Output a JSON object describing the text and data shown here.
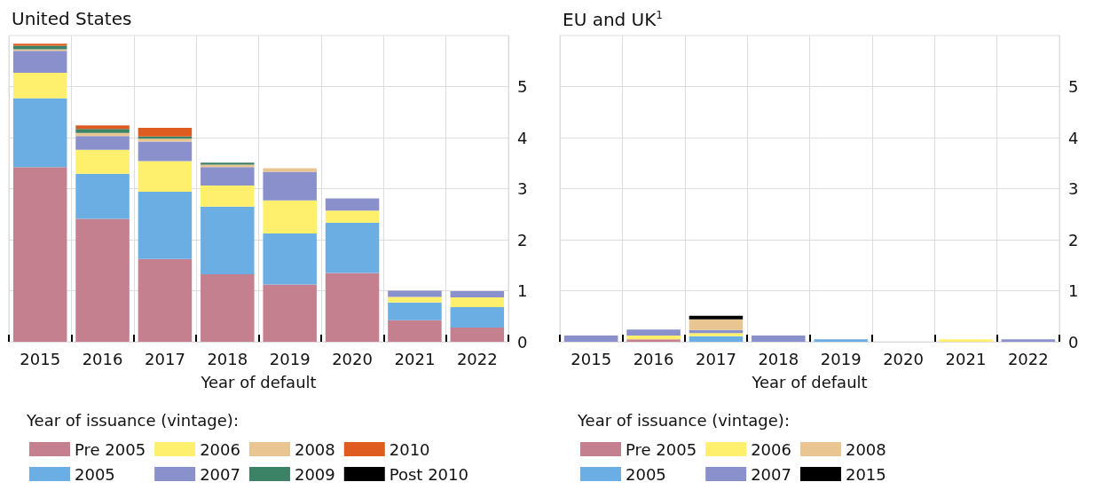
{
  "chart_data": [
    {
      "type": "bar",
      "stacked": true,
      "title": "United States",
      "xlabel": "Year of default",
      "legend_title": "Year of issuance (vintage):",
      "legend": "bottom",
      "grid": true,
      "categories": [
        "2015",
        "2016",
        "2017",
        "2018",
        "2019",
        "2020",
        "2021",
        "2022"
      ],
      "ylim": [
        0,
        6
      ],
      "yticks": [
        0,
        1,
        2,
        3,
        4,
        5
      ],
      "series": [
        {
          "name": "Pre 2005",
          "color": "#c4808f",
          "values": [
            3.42,
            2.41,
            1.62,
            1.32,
            1.12,
            1.35,
            0.42,
            0.28
          ]
        },
        {
          "name": "2005",
          "color": "#6aaee3",
          "values": [
            1.35,
            0.88,
            1.32,
            1.33,
            1.0,
            0.98,
            0.35,
            0.4
          ]
        },
        {
          "name": "2006",
          "color": "#fef06c",
          "values": [
            0.5,
            0.47,
            0.6,
            0.41,
            0.65,
            0.24,
            0.11,
            0.19
          ]
        },
        {
          "name": "2007",
          "color": "#8a90cc",
          "values": [
            0.43,
            0.27,
            0.38,
            0.36,
            0.56,
            0.24,
            0.12,
            0.12
          ]
        },
        {
          "name": "2008",
          "color": "#e8c591",
          "values": [
            0.03,
            0.06,
            0.06,
            0.05,
            0.07,
            0,
            0,
            0
          ]
        },
        {
          "name": "2009",
          "color": "#3b8266",
          "values": [
            0.07,
            0.08,
            0.04,
            0.04,
            0,
            0,
            0,
            0
          ]
        },
        {
          "name": "2010",
          "color": "#df5c21",
          "values": [
            0.04,
            0.07,
            0.17,
            0,
            0,
            0,
            0,
            0
          ]
        },
        {
          "name": "Post 2010",
          "color": "#000000",
          "values": [
            0,
            0,
            0,
            0,
            0,
            0,
            0,
            0
          ]
        }
      ]
    },
    {
      "type": "bar",
      "stacked": true,
      "title": "EU and UK$^{1}$",
      "xlabel": "Year of default",
      "legend_title": "Year of issuance (vintage):",
      "legend": "bottom",
      "grid": true,
      "categories": [
        "2015",
        "2016",
        "2017",
        "2018",
        "2019",
        "2020",
        "2021",
        "2022"
      ],
      "ylim": [
        0,
        6
      ],
      "yticks": [
        0,
        1,
        2,
        3,
        4,
        5
      ],
      "series": [
        {
          "name": "Pre 2005",
          "color": "#c4808f",
          "values": [
            0,
            0.05,
            0,
            0,
            0,
            0,
            0,
            0
          ]
        },
        {
          "name": "2005",
          "color": "#6aaee3",
          "values": [
            0,
            0,
            0.11,
            0,
            0.05,
            0,
            0,
            0
          ]
        },
        {
          "name": "2006",
          "color": "#fef06c",
          "values": [
            0,
            0.07,
            0.06,
            0,
            0,
            0,
            0.05,
            0
          ]
        },
        {
          "name": "2007",
          "color": "#8a90cc",
          "values": [
            0.12,
            0.12,
            0.06,
            0.12,
            0,
            0,
            0,
            0.05
          ]
        },
        {
          "name": "2008",
          "color": "#e8c591",
          "values": [
            0,
            0,
            0.21,
            0,
            0,
            0,
            0,
            0
          ]
        },
        {
          "name": "2015",
          "color": "#000000",
          "values": [
            0,
            0,
            0.07,
            0,
            0,
            0,
            0,
            0
          ]
        }
      ]
    }
  ]
}
